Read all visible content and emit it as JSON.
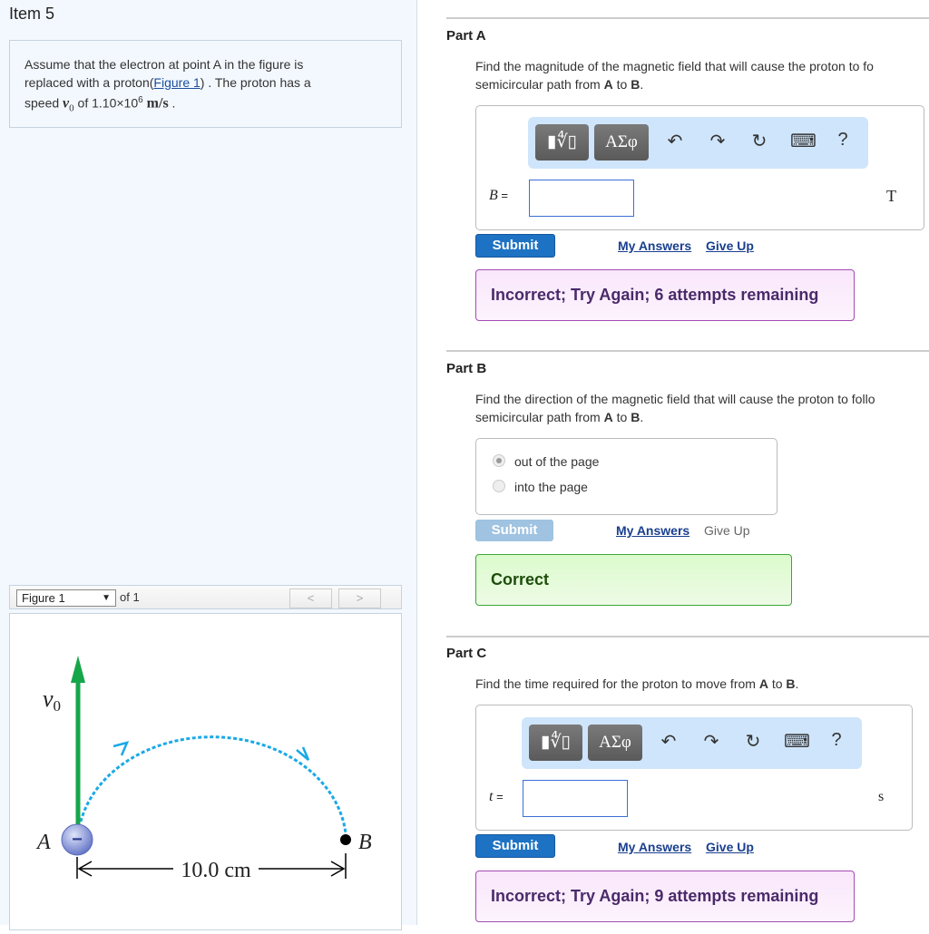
{
  "left": {
    "item_title": "Item 5",
    "prompt": {
      "line1": "Assume that the electron at point A in the figure is",
      "line2_pre": "replaced with a proton(",
      "figure_link": "Figure 1",
      "line2_post": ") . The proton has a",
      "line3_pre": "speed ",
      "var": "v",
      "var_sub": "0",
      "line3_mid": " of 1.10×10",
      "exp": "6",
      "unit": " m/s",
      "line3_post": " ."
    },
    "figure_nav": {
      "selected": "Figure 1",
      "of": "of 1",
      "prev": "<",
      "next": ">"
    },
    "figure": {
      "v_label": "v",
      "v_sub": "0",
      "point_a": "A",
      "point_b": "B",
      "distance": "10.0 cm",
      "charge_sign": "−",
      "colors": {
        "arrow": "#16a64a",
        "path": "#1aa9e6",
        "charge": "#7d8fd6"
      }
    }
  },
  "toolbar": {
    "template_btn": "▮∜▯",
    "symbols_btn": "ΑΣφ",
    "undo": "↶",
    "redo": "↷",
    "reset": "↻",
    "keyboard": "⌨",
    "help": "?"
  },
  "parts": {
    "a": {
      "label": "Part A",
      "q1_pre": "Find the magnitude of the magnetic field that will cause the proton to fo",
      "q2_pre": "semicircular path from ",
      "A": "A",
      "to": " to ",
      "B": "B",
      "end": ".",
      "var": "B",
      "eq": " =",
      "input_value": "",
      "unit": "T",
      "submit": "Submit",
      "my_answers": "My Answers",
      "give_up": "Give Up",
      "feedback": "Incorrect; Try Again; 6 attempts remaining"
    },
    "b": {
      "label": "Part B",
      "q1_pre": "Find the direction of the magnetic field that will cause the proton to follo",
      "q2_pre": "semicircular path from ",
      "A": "A",
      "to": " to ",
      "B": "B",
      "end": ".",
      "options": [
        {
          "label": "out of the page",
          "selected": true
        },
        {
          "label": "into the page",
          "selected": false
        }
      ],
      "submit": "Submit",
      "my_answers": "My Answers",
      "give_up": "Give Up",
      "feedback": "Correct"
    },
    "c": {
      "label": "Part C",
      "q_pre": "Find the time required for the proton to move from ",
      "A": "A",
      "to": " to ",
      "B": "B",
      "end": ".",
      "var": "t",
      "eq": " =",
      "input_value": "",
      "unit": "s",
      "submit": "Submit",
      "my_answers": "My Answers",
      "give_up": "Give Up",
      "feedback": "Incorrect; Try Again; 9 attempts remaining"
    }
  }
}
